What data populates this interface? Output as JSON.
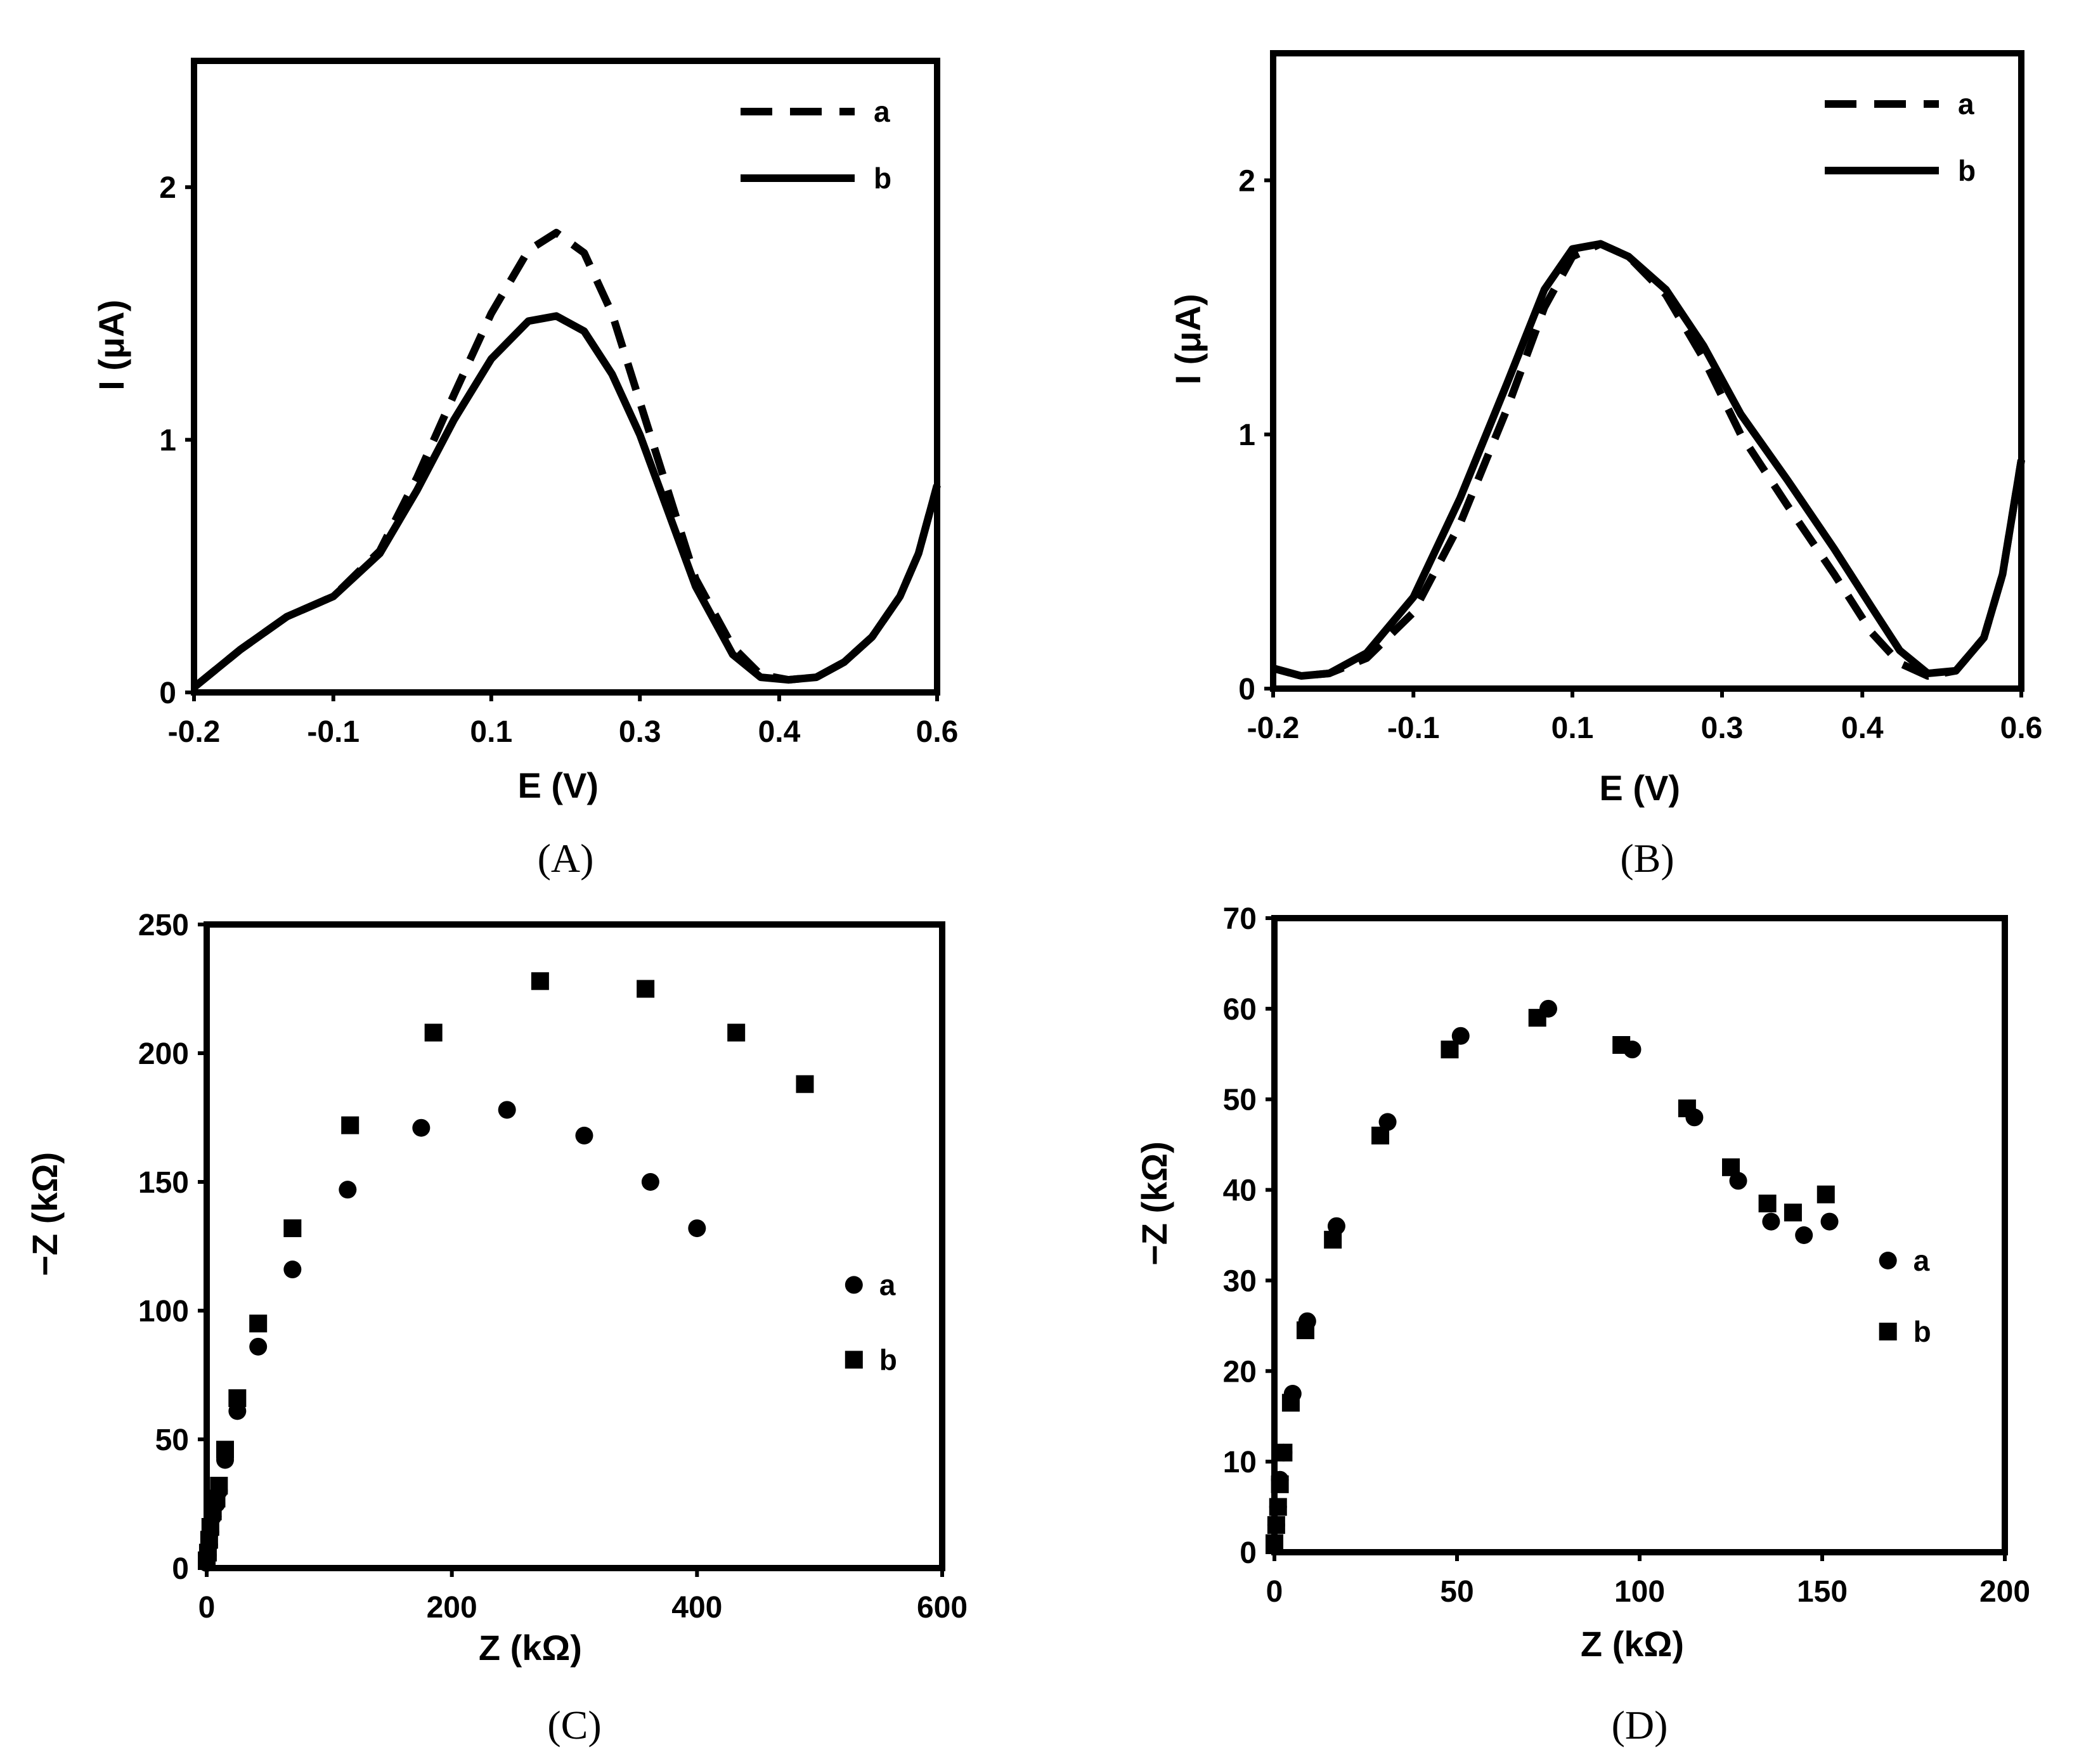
{
  "chart_data": [
    {
      "panel": "(A)",
      "type": "line",
      "xlabel": "E (V)",
      "ylabel": "I (μA)",
      "xlim": [
        -0.2,
        0.6
      ],
      "ylim": [
        0,
        2.5
      ],
      "xticks": [
        "-0.2",
        "-0.1",
        "0.1",
        "0.3",
        "0.4",
        "0.6"
      ],
      "xtick_values": [
        -0.2,
        -0.05,
        0.12,
        0.28,
        0.43,
        0.6
      ],
      "yticks": [
        "0",
        "1",
        "2"
      ],
      "ytick_values": [
        0,
        1,
        2
      ],
      "legend_position": "top-right",
      "series": [
        {
          "name": "a",
          "style": "dashed",
          "x": [
            -0.2,
            -0.15,
            -0.1,
            -0.05,
            0.0,
            0.04,
            0.08,
            0.12,
            0.16,
            0.19,
            0.22,
            0.25,
            0.28,
            0.31,
            0.34,
            0.38,
            0.41,
            0.44,
            0.47,
            0.5,
            0.53,
            0.56,
            0.58,
            0.6
          ],
          "y": [
            0.02,
            0.17,
            0.3,
            0.38,
            0.56,
            0.85,
            1.18,
            1.5,
            1.75,
            1.82,
            1.74,
            1.5,
            1.15,
            0.8,
            0.45,
            0.18,
            0.07,
            0.05,
            0.06,
            0.12,
            0.22,
            0.38,
            0.55,
            0.82
          ]
        },
        {
          "name": "b",
          "style": "solid",
          "x": [
            -0.2,
            -0.15,
            -0.1,
            -0.05,
            0.0,
            0.04,
            0.08,
            0.12,
            0.16,
            0.19,
            0.22,
            0.25,
            0.28,
            0.31,
            0.34,
            0.38,
            0.41,
            0.44,
            0.47,
            0.5,
            0.53,
            0.56,
            0.58,
            0.6
          ],
          "y": [
            0.02,
            0.17,
            0.3,
            0.38,
            0.55,
            0.8,
            1.08,
            1.32,
            1.47,
            1.49,
            1.43,
            1.26,
            1.02,
            0.72,
            0.42,
            0.15,
            0.06,
            0.05,
            0.06,
            0.12,
            0.22,
            0.38,
            0.55,
            0.82
          ]
        }
      ]
    },
    {
      "panel": "(B)",
      "type": "line",
      "xlabel": "E (V)",
      "ylabel": "I (μA)",
      "xlim": [
        -0.2,
        0.6
      ],
      "ylim": [
        0,
        2.5
      ],
      "xticks": [
        "-0.2",
        "-0.1",
        "0.1",
        "0.3",
        "0.4",
        "0.6"
      ],
      "xtick_values": [
        -0.2,
        -0.05,
        0.12,
        0.28,
        0.43,
        0.6
      ],
      "yticks": [
        "0",
        "1",
        "2"
      ],
      "ytick_values": [
        0,
        1,
        2
      ],
      "legend_position": "top-right",
      "series": [
        {
          "name": "a",
          "style": "dashed",
          "x": [
            -0.2,
            -0.17,
            -0.14,
            -0.1,
            -0.05,
            0.0,
            0.05,
            0.09,
            0.12,
            0.15,
            0.18,
            0.22,
            0.26,
            0.3,
            0.35,
            0.4,
            0.44,
            0.47,
            0.5,
            0.53,
            0.56,
            0.58,
            0.6
          ],
          "y": [
            0.08,
            0.05,
            0.06,
            0.12,
            0.3,
            0.65,
            1.1,
            1.5,
            1.7,
            1.75,
            1.7,
            1.55,
            1.3,
            1.0,
            0.72,
            0.45,
            0.22,
            0.1,
            0.05,
            0.07,
            0.2,
            0.45,
            0.9
          ]
        },
        {
          "name": "b",
          "style": "solid",
          "x": [
            -0.2,
            -0.17,
            -0.14,
            -0.1,
            -0.05,
            0.0,
            0.05,
            0.09,
            0.12,
            0.15,
            0.18,
            0.22,
            0.26,
            0.3,
            0.35,
            0.4,
            0.44,
            0.47,
            0.5,
            0.53,
            0.56,
            0.58,
            0.6
          ],
          "y": [
            0.08,
            0.05,
            0.06,
            0.14,
            0.36,
            0.75,
            1.2,
            1.57,
            1.73,
            1.75,
            1.7,
            1.57,
            1.35,
            1.08,
            0.82,
            0.55,
            0.32,
            0.15,
            0.06,
            0.07,
            0.2,
            0.45,
            0.9
          ]
        }
      ]
    },
    {
      "panel": "(C)",
      "type": "scatter",
      "xlabel": "Z (kΩ)",
      "ylabel": "−Z (kΩ)",
      "xlim": [
        0,
        600
      ],
      "ylim": [
        0,
        250
      ],
      "xticks": [
        "0",
        "200",
        "400",
        "600"
      ],
      "xtick_values": [
        0,
        200,
        400,
        600
      ],
      "yticks": [
        "0",
        "50",
        "100",
        "150",
        "200",
        "250"
      ],
      "ytick_values": [
        0,
        50,
        100,
        150,
        200,
        250
      ],
      "legend_position": "right",
      "series": [
        {
          "name": "a",
          "marker": "circle",
          "x": [
            0,
            1,
            2,
            3,
            5,
            8,
            10,
            15,
            25,
            42,
            70,
            115,
            175,
            245,
            308,
            362,
            400
          ],
          "y": [
            2,
            5,
            9,
            14,
            20,
            25,
            30,
            42,
            61,
            86,
            116,
            147,
            171,
            178,
            168,
            150,
            132
          ]
        },
        {
          "name": "b",
          "marker": "square",
          "x": [
            0,
            1,
            2,
            3,
            5,
            8,
            10,
            15,
            25,
            42,
            70,
            117,
            185,
            272,
            358,
            432,
            488
          ],
          "y": [
            3,
            6,
            11,
            16,
            22,
            27,
            32,
            46,
            66,
            95,
            132,
            172,
            208,
            228,
            225,
            208,
            188
          ]
        }
      ]
    },
    {
      "panel": "(D)",
      "type": "scatter",
      "xlabel": "Z (kΩ)",
      "ylabel": "−Z (kΩ)",
      "xlim": [
        0,
        200
      ],
      "ylim": [
        0,
        70
      ],
      "xticks": [
        "0",
        "50",
        "100",
        "150",
        "200"
      ],
      "xtick_values": [
        0,
        50,
        100,
        150,
        200
      ],
      "yticks": [
        "0",
        "10",
        "20",
        "30",
        "40",
        "50",
        "60",
        "70"
      ],
      "ytick_values": [
        0,
        10,
        20,
        30,
        40,
        50,
        60,
        70
      ],
      "legend_position": "right",
      "series": [
        {
          "name": "a",
          "marker": "circle",
          "x": [
            0,
            0.5,
            1,
            1.5,
            2.5,
            5,
            9,
            17,
            31,
            51,
            75,
            98,
            115,
            127,
            136,
            145,
            152
          ],
          "y": [
            1,
            3,
            5,
            8,
            11,
            17.5,
            25.5,
            36,
            47.5,
            57,
            60,
            55.5,
            48,
            41,
            36.5,
            35,
            36.5
          ]
        },
        {
          "name": "b",
          "marker": "square",
          "x": [
            0,
            0.5,
            1,
            1.5,
            2.5,
            4.5,
            8.5,
            16,
            29,
            48,
            72,
            95,
            113,
            125,
            135,
            142,
            151
          ],
          "y": [
            1,
            3,
            5,
            7.5,
            11,
            16.5,
            24.5,
            34.5,
            46,
            55.5,
            59,
            56,
            49,
            42.5,
            38.5,
            37.5,
            39.5
          ]
        }
      ]
    }
  ]
}
